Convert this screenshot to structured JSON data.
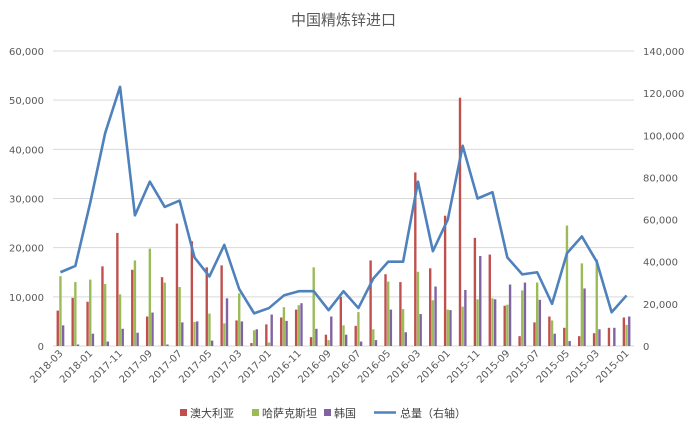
{
  "chart_data": {
    "type": "bar+line",
    "title": "中国精炼锌进口",
    "categories": [
      "2018-03",
      "2018-02",
      "2018-01",
      "2017-12",
      "2017-11",
      "2017-10",
      "2017-09",
      "2017-08",
      "2017-07",
      "2017-06",
      "2017-05",
      "2017-04",
      "2017-03",
      "2017-02",
      "2017-01",
      "2016-12",
      "2016-11",
      "2016-10",
      "2016-09",
      "2016-08",
      "2016-07",
      "2016-06",
      "2016-05",
      "2016-04",
      "2016-03",
      "2016-02",
      "2016-01",
      "2015-12",
      "2015-11",
      "2015-10",
      "2015-09",
      "2015-08",
      "2015-07",
      "2015-06",
      "2015-05",
      "2015-04",
      "2015-03",
      "2015-02",
      "2015-01"
    ],
    "x_tick_labels": [
      "2018-03",
      "2018-01",
      "2017-11",
      "2017-09",
      "2017-07",
      "2017-05",
      "2017-03",
      "2017-01",
      "2016-11",
      "2016-09",
      "2016-07",
      "2016-05",
      "2016-03",
      "2016-01",
      "2015-11",
      "2015-09",
      "2015-07",
      "2015-05",
      "2015-03",
      "2015-01"
    ],
    "series": [
      {
        "name": "澳大利亚",
        "axis": "left",
        "kind": "bar",
        "color": "#c0504d",
        "values": [
          7200,
          9800,
          9000,
          16200,
          23000,
          15500,
          6000,
          14000,
          24900,
          21300,
          16000,
          16400,
          5200,
          600,
          4400,
          5800,
          7400,
          1800,
          2300,
          10000,
          4100,
          17400,
          14600,
          13000,
          35300,
          15800,
          26500,
          50500,
          22000,
          18600,
          8200,
          2000,
          4800,
          6000,
          3700,
          2000,
          2600,
          3700,
          5800
        ]
      },
      {
        "name": "哈萨克斯坦",
        "axis": "left",
        "kind": "bar",
        "color": "#9bbb59",
        "values": [
          14200,
          13000,
          13500,
          12600,
          10500,
          17400,
          19800,
          12900,
          12000,
          4900,
          6600,
          4600,
          10700,
          3200,
          700,
          7900,
          8300,
          16000,
          1200,
          4200,
          6900,
          3400,
          13100,
          7500,
          15100,
          9300,
          7400,
          8000,
          9500,
          9700,
          8400,
          11300,
          12900,
          5200,
          24500,
          16800,
          17600,
          0,
          4300
        ]
      },
      {
        "name": "韩国",
        "axis": "left",
        "kind": "bar",
        "color": "#8064a2",
        "values": [
          4200,
          300,
          2500,
          900,
          3500,
          2700,
          6800,
          300,
          4800,
          5000,
          1100,
          9700,
          5000,
          3400,
          6400,
          5100,
          8700,
          3500,
          6000,
          2300,
          900,
          1200,
          7400,
          2800,
          6500,
          12100,
          7300,
          11400,
          18300,
          9500,
          12500,
          12900,
          9400,
          2500,
          1000,
          11700,
          3400,
          3700,
          6000
        ]
      },
      {
        "name": "总量（右轴）",
        "axis": "right",
        "kind": "line",
        "color": "#4f81bd",
        "values": [
          35000,
          38000,
          68000,
          101000,
          123000,
          62000,
          78000,
          66000,
          69000,
          42000,
          33000,
          48000,
          27000,
          15500,
          18000,
          24000,
          26000,
          26000,
          17000,
          26000,
          18000,
          32000,
          40000,
          40000,
          78000,
          45000,
          60000,
          95000,
          70000,
          73000,
          42000,
          34000,
          35000,
          20000,
          44000,
          52000,
          40000,
          16000,
          24000
        ]
      }
    ],
    "y_left": {
      "min": 0,
      "max": 60000,
      "ticks": [
        "0",
        "10,000",
        "20,000",
        "30,000",
        "40,000",
        "50,000",
        "60,000"
      ]
    },
    "y_right": {
      "min": 0,
      "max": 140000,
      "ticks": [
        "0",
        "20,000",
        "40,000",
        "60,000",
        "80,000",
        "100,000",
        "120,000",
        "140,000"
      ]
    },
    "legend_position": "bottom",
    "grid": true
  }
}
